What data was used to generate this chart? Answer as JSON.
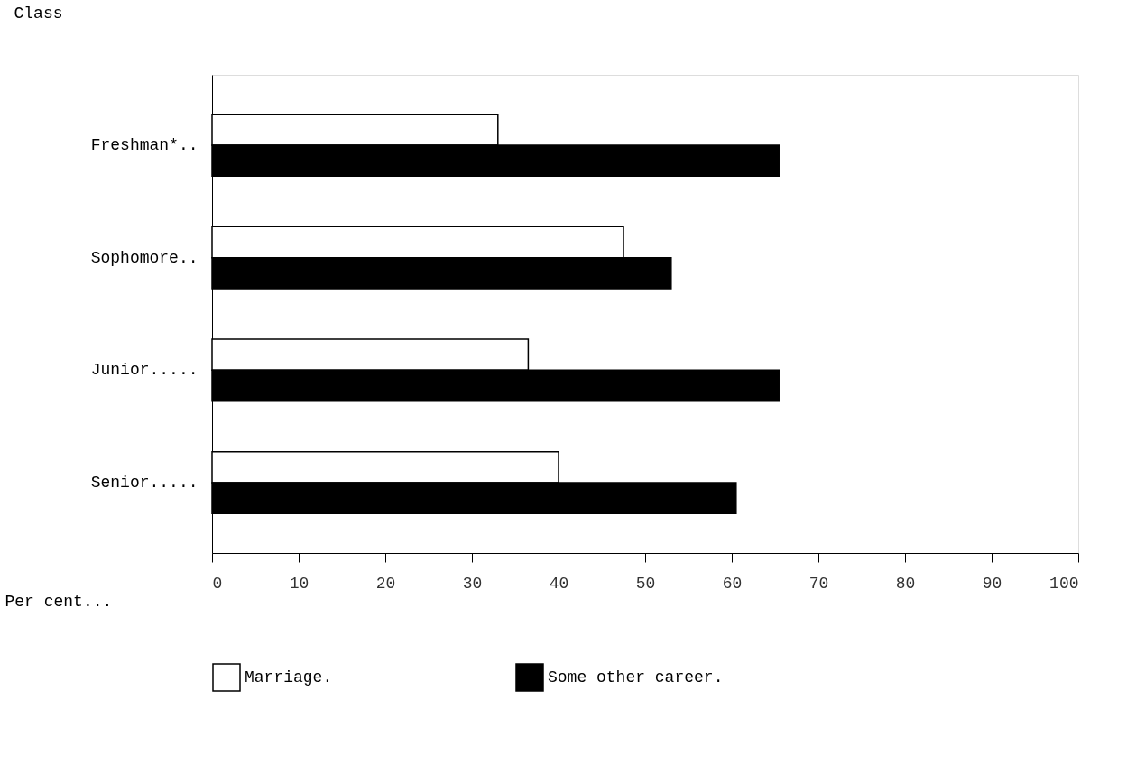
{
  "chart_data": {
    "type": "bar",
    "orientation": "horizontal",
    "xlabel": "Per cent...",
    "ylabel": "Class",
    "categories": [
      "Freshman*..",
      "Sophomore..",
      "Junior.....",
      "Senior....."
    ],
    "series": [
      {
        "name": "Marriage.",
        "color": "#ffffff",
        "values": [
          33,
          47.5,
          36.5,
          40
        ]
      },
      {
        "name": "Some other career.",
        "color": "#000000",
        "values": [
          65.5,
          53,
          65.5,
          60.5
        ]
      }
    ],
    "xlim": [
      0,
      100
    ],
    "xticks": [
      0,
      10,
      20,
      30,
      40,
      50,
      60,
      70,
      80,
      90,
      100
    ],
    "grid": false,
    "legend": "bottom"
  }
}
